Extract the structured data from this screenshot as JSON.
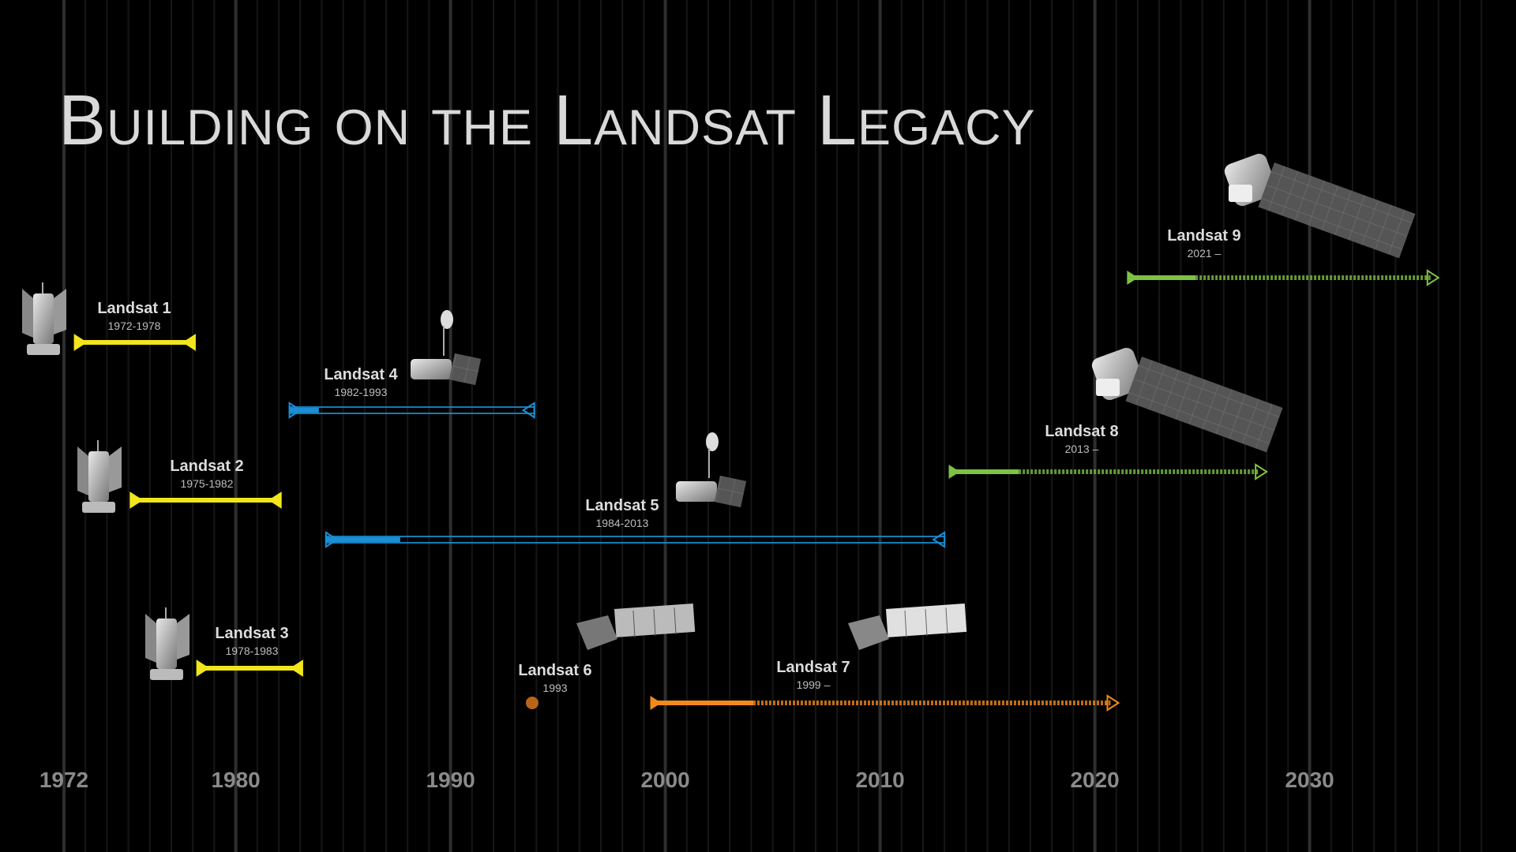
{
  "title": "Building on the Landsat Legacy",
  "chart_data": {
    "type": "timeline",
    "title": "Building on the Landsat Legacy",
    "x_ticks": [
      1972,
      1980,
      1990,
      2000,
      2010,
      2020,
      2030
    ],
    "xlim": [
      1972,
      2038
    ],
    "grid": "vertical, one line per year",
    "missions": [
      {
        "name": "Landsat 1",
        "years_label": "1972-1978",
        "start": 1972.5,
        "end": 1978.1,
        "status": "ended",
        "color": "#f2e51b",
        "row": 1
      },
      {
        "name": "Landsat 2",
        "years_label": "1975-1982",
        "start": 1975.1,
        "end": 1982.1,
        "status": "ended",
        "color": "#f2e51b",
        "row": 3
      },
      {
        "name": "Landsat 3",
        "years_label": "1978-1983",
        "start": 1978.2,
        "end": 1983.1,
        "status": "ended",
        "color": "#f2e51b",
        "row": 5
      },
      {
        "name": "Landsat 4",
        "years_label": "1982-1993",
        "start": 1982.5,
        "end": 1993.9,
        "status": "ended",
        "color": "#1a8fd6",
        "row": 2
      },
      {
        "name": "Landsat 5",
        "years_label": "1984-2013",
        "start": 1984.2,
        "end": 2013.0,
        "status": "ended",
        "color": "#1a8fd6",
        "row": 4
      },
      {
        "name": "Landsat 6",
        "years_label": "1993",
        "start": 1993.8,
        "end": 1993.8,
        "status": "launch failure",
        "color": "#b8651a",
        "row": 6
      },
      {
        "name": "Landsat 7",
        "years_label": "1999 –",
        "start": 1999.3,
        "end": 2021.1,
        "status": "ongoing",
        "color": "#f28a1a",
        "row": 6
      },
      {
        "name": "Landsat 8",
        "years_label": "2013 –",
        "start": 2013.2,
        "end": 2028.0,
        "status": "ongoing",
        "color": "#7dc242",
        "row": 3
      },
      {
        "name": "Landsat 9",
        "years_label": "2021 –",
        "start": 2021.5,
        "end": 2036.0,
        "status": "ongoing",
        "color": "#7dc242",
        "row": 0
      }
    ]
  }
}
